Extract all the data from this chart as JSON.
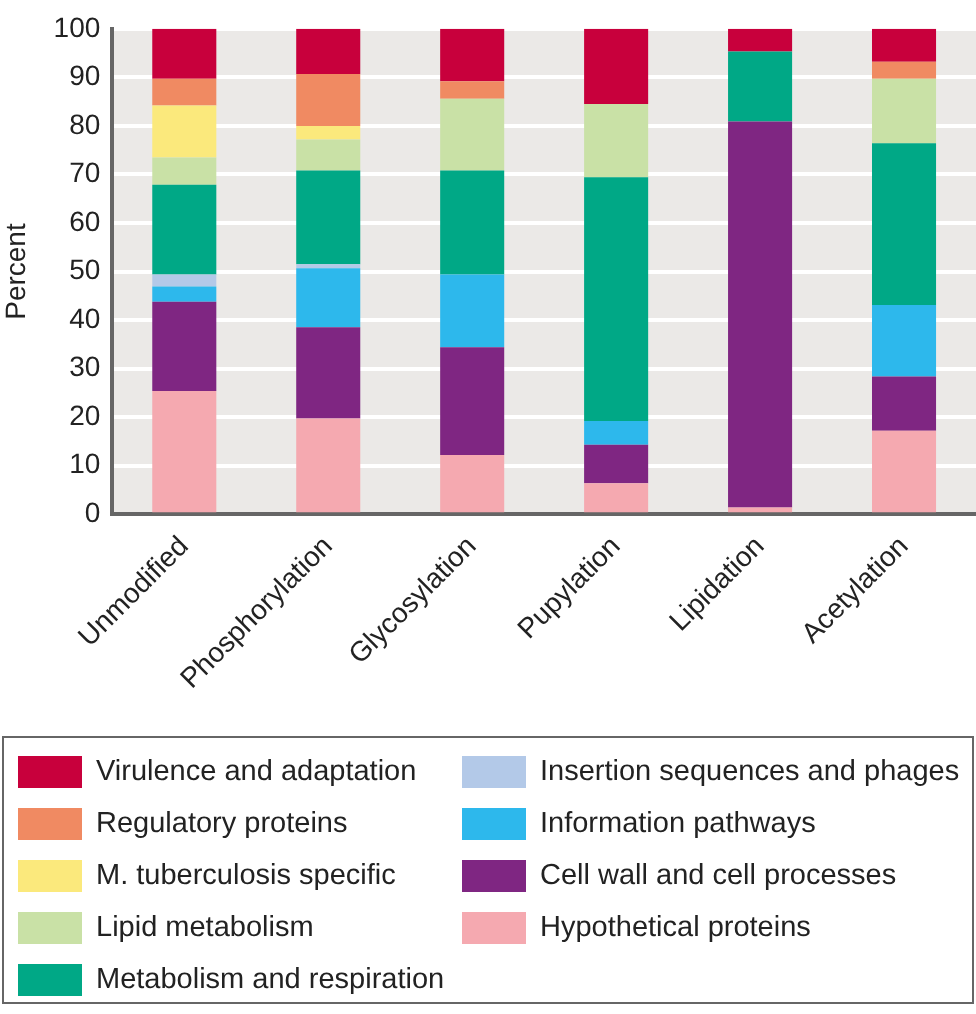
{
  "chart_data": {
    "type": "bar",
    "stacked": true,
    "ylabel": "Percent",
    "categories": [
      "Unmodified",
      "Phosphorylation",
      "Glycosylation",
      "Pupylation",
      "Lipidation",
      "Acetylation"
    ],
    "series": [
      {
        "name": "Hypothetical proteins",
        "color": "#f5a9b0",
        "values": [
          25.4,
          19.7,
          12.2,
          6.4,
          1.4,
          17.2
        ]
      },
      {
        "name": "Cell wall and cell processes",
        "color": "#7f2682",
        "values": [
          18.4,
          18.8,
          22.2,
          7.9,
          79.5,
          11.2
        ]
      },
      {
        "name": "Information pathways",
        "color": "#2db8ec",
        "values": [
          3.1,
          12.2,
          15.0,
          4.9,
          0,
          14.7
        ]
      },
      {
        "name": "Insertion sequences and phages",
        "color": "#b3c9e8",
        "values": [
          2.5,
          0.8,
          0,
          0,
          0,
          0
        ]
      },
      {
        "name": "Metabolism and respiration",
        "color": "#00a886",
        "values": [
          18.5,
          19.3,
          21.4,
          50.2,
          14.4,
          33.3
        ]
      },
      {
        "name": "Lipid metabolism",
        "color": "#c9e1a6",
        "values": [
          5.6,
          6.4,
          14.8,
          15.1,
          0,
          13.3
        ]
      },
      {
        "name": "M. tuberculosis specific",
        "color": "#fbe97c",
        "values": [
          10.7,
          2.8,
          0,
          0,
          0,
          0
        ]
      },
      {
        "name": "Regulatory proteins",
        "color": "#f08a62",
        "values": [
          5.5,
          10.7,
          3.6,
          0,
          0,
          3.5
        ]
      },
      {
        "name": "Virulence and adaptation",
        "color": "#c8003c",
        "values": [
          10.3,
          9.3,
          10.8,
          15.5,
          4.7,
          6.8
        ]
      }
    ],
    "ylim": [
      0,
      100
    ],
    "yticks": [
      0,
      10,
      20,
      30,
      40,
      50,
      60,
      70,
      80,
      90,
      100
    ],
    "grid": "y",
    "legend": "bottom"
  }
}
